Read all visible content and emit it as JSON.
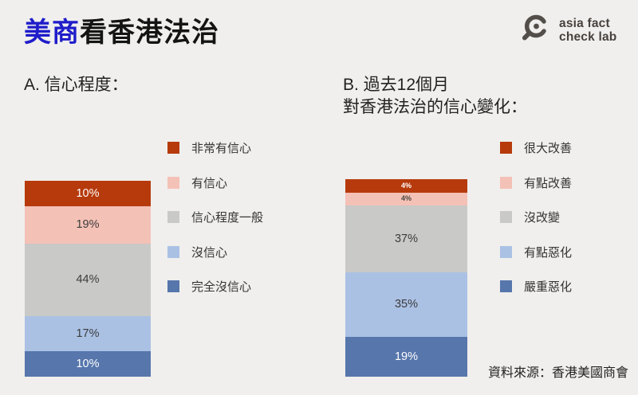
{
  "header": {
    "title_accent": "美商",
    "title_rest": "看香港法治",
    "logo_line1": "asia fact",
    "logo_line2": "check lab"
  },
  "footer": {
    "source": "資料來源：香港美國商會"
  },
  "colors": {
    "background": "#f0efed",
    "title_accent": "#1f1cca",
    "title_main": "#141414",
    "logo": "#534e49",
    "segment_red": "#b63a0c",
    "segment_pink": "#f4c1b6",
    "segment_gray": "#c9c9c7",
    "segment_lightblue": "#aac1e4",
    "segment_blue": "#5676ac"
  },
  "chart_data": [
    {
      "type": "bar",
      "subtype": "stacked-vertical",
      "unit": "%",
      "title_lines": [
        "A. 信心程度："
      ],
      "legend_position": "right",
      "segments": [
        {
          "label": "非常有信心",
          "value": 10,
          "color": "#b63a0c",
          "text_color": "#ffffff"
        },
        {
          "label": "有信心",
          "value": 19,
          "color": "#f4c1b6",
          "text_color": "#3c3c3c"
        },
        {
          "label": "信心程度一般",
          "value": 44,
          "color": "#c9c9c7",
          "text_color": "#3c3c3c"
        },
        {
          "label": "沒信心",
          "value": 17,
          "color": "#aac1e4",
          "text_color": "#3c3c3c"
        },
        {
          "label": "完全沒信心",
          "value": 10,
          "color": "#5676ac",
          "text_color": "#ffffff"
        }
      ]
    },
    {
      "type": "bar",
      "subtype": "stacked-vertical",
      "unit": "%",
      "title_lines": [
        "B. 過去12個月",
        "對香港法治的信心變化："
      ],
      "legend_position": "right",
      "segments": [
        {
          "label": "很大改善",
          "value": 4,
          "color": "#b63a0c",
          "text_color": "#ffffff"
        },
        {
          "label": "有點改善",
          "value": 4,
          "color": "#f4c1b6",
          "text_color": "#4a443f"
        },
        {
          "label": "沒改變",
          "value": 37,
          "color": "#c9c9c7",
          "text_color": "#3c3c3c"
        },
        {
          "label": "有點惡化",
          "value": 35,
          "color": "#aac1e4",
          "text_color": "#3c3c3c"
        },
        {
          "label": "嚴重惡化",
          "value": 19,
          "color": "#5676ac",
          "text_color": "#ffffff"
        }
      ]
    }
  ]
}
